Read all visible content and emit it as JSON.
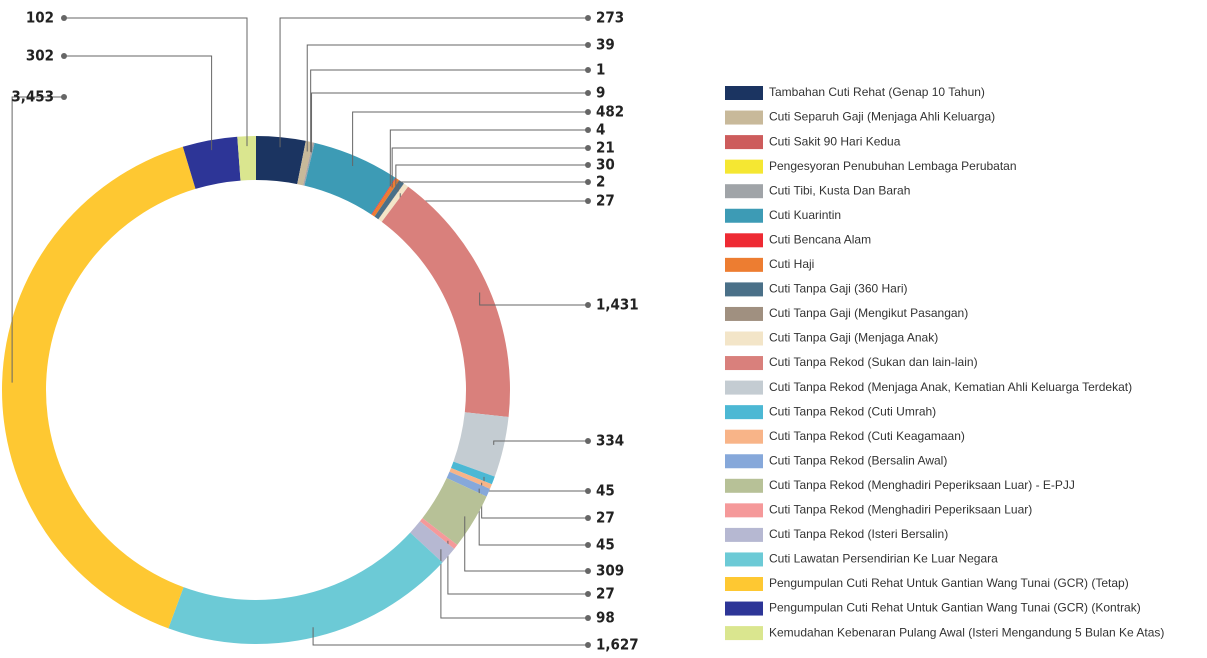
{
  "chart_data": {
    "type": "donut",
    "categories": [
      "Tambahan Cuti Rehat (Genap 10 Tahun)",
      "Cuti Separuh Gaji (Menjaga Ahli Keluarga)",
      "Cuti Sakit 90 Hari Kedua",
      "Pengesyoran Penubuhan Lembaga Perubatan",
      "Cuti Tibi, Kusta Dan Barah",
      "Cuti Kuarintin",
      "Cuti Bencana Alam",
      "Cuti Haji",
      "Cuti Tanpa Gaji (360 Hari)",
      "Cuti Tanpa Gaji (Mengikut Pasangan)",
      "Cuti Tanpa Gaji (Menjaga Anak)",
      "Cuti Tanpa Rekod (Sukan dan lain-lain)",
      "Cuti Tanpa Rekod (Menjaga Anak, Kematian Ahli Keluarga Terdekat)",
      "Cuti Tanpa Rekod (Cuti Umrah)",
      "Cuti Tanpa Rekod (Cuti Keagamaan)",
      "Cuti Tanpa Rekod (Bersalin Awal)",
      "Cuti Tanpa Rekod (Menghadiri Peperiksaan Luar) - E-PJJ",
      "Cuti Tanpa Rekod (Menghadiri Peperiksaan Luar)",
      "Cuti Tanpa Rekod (Isteri Bersalin)",
      "Cuti Lawatan Persendirian Ke Luar Negara",
      "Pengumpulan Cuti Rehat Untuk Gantian Wang Tunai (GCR) (Tetap)",
      "Pengumpulan Cuti Rehat Untuk Gantian Wang Tunai (GCR) (Kontrak)",
      "Kemudahan Kebenaran Pulang Awal (Isteri Mengandung 5 Bulan Ke Atas)"
    ],
    "values": [
      273,
      39,
      1,
      null,
      9,
      482,
      4,
      21,
      30,
      2,
      27,
      1431,
      334,
      45,
      27,
      45,
      309,
      27,
      98,
      1627,
      3453,
      302,
      102
    ],
    "value_labels": [
      "273",
      "39",
      "1",
      null,
      "9",
      "482",
      "4",
      "21",
      "30",
      "2",
      "27",
      "1,431",
      "334",
      "45",
      "27",
      "45",
      "309",
      "27",
      "98",
      "1,627",
      "3,453",
      "302",
      "102"
    ],
    "colors": [
      "#1b3461",
      "#c8b99a",
      "#cd5c5c",
      "#f5e732",
      "#a0a4a8",
      "#3d9bb5",
      "#ee2a33",
      "#ed7d31",
      "#4a7088",
      "#a09080",
      "#f3e5c8",
      "#d9807c",
      "#c4ccd2",
      "#4cb8d4",
      "#f8b488",
      "#86a8da",
      "#b7c197",
      "#f5999a",
      "#b6b8d2",
      "#6ccad6",
      "#fec832",
      "#2d3597",
      "#dae68f"
    ],
    "legend": "right"
  }
}
